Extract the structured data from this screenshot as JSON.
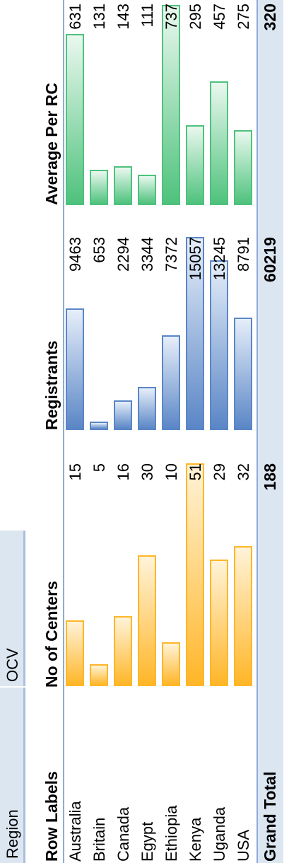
{
  "filter": {
    "label": "Region",
    "value": "OCV"
  },
  "table": {
    "headers": {
      "row_labels": "Row Labels",
      "centers": "No of Centers",
      "registrants": "Registrants",
      "average": "Average Per RC"
    },
    "rows": [
      {
        "label": "Australia",
        "centers": 15,
        "registrants": 9463,
        "average": 631
      },
      {
        "label": "Britain",
        "centers": 5,
        "registrants": 653,
        "average": 131
      },
      {
        "label": "Canada",
        "centers": 16,
        "registrants": 2294,
        "average": 143
      },
      {
        "label": "Egypt",
        "centers": 30,
        "registrants": 3344,
        "average": 111
      },
      {
        "label": "Ethiopia",
        "centers": 10,
        "registrants": 7372,
        "average": 737
      },
      {
        "label": "Kenya",
        "centers": 51,
        "registrants": 15057,
        "average": 295
      },
      {
        "label": "Uganda",
        "centers": 29,
        "registrants": 13245,
        "average": 457
      },
      {
        "label": "USA",
        "centers": 32,
        "registrants": 8791,
        "average": 275
      }
    ],
    "total": {
      "label": "Grand Total",
      "centers": 188,
      "registrants": 60219,
      "average": 320
    }
  },
  "colors": {
    "centers_bar": "#ffb628",
    "registrants_bar": "#5a86c6",
    "average_bar": "#4ec27c",
    "header_fill": "#dce6f1"
  }
}
